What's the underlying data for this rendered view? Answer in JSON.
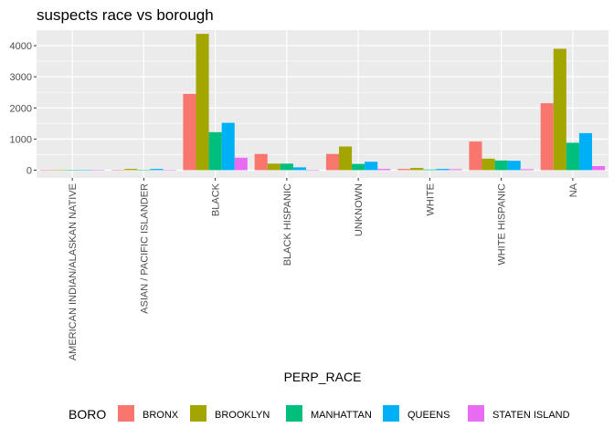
{
  "chart_data": {
    "type": "bar",
    "title": "suspects race vs borough",
    "xlabel": "PERP_RACE",
    "ylabel": "",
    "ylim": [
      -250,
      4500
    ],
    "yticks": [
      0,
      1000,
      2000,
      3000,
      4000
    ],
    "grid": true,
    "legend_placement": "bottom",
    "legend_title": "BORO",
    "categories": [
      "AMERICAN INDIAN/ALASKAN NATIVE",
      "ASIAN / PACIFIC ISLANDER",
      "BLACK",
      "BLACK HISPANIC",
      "UNKNOWN",
      "WHITE",
      "WHITE HISPANIC",
      "NA"
    ],
    "series": [
      {
        "name": "BRONX",
        "color": "#F8766D",
        "values": [
          5,
          5,
          2450,
          520,
          520,
          40,
          920,
          2150
        ]
      },
      {
        "name": "BROOKLYN",
        "color": "#A3A500",
        "values": [
          10,
          40,
          4380,
          210,
          760,
          70,
          370,
          3900
        ]
      },
      {
        "name": "MANHATTAN",
        "color": "#00BF7D",
        "values": [
          3,
          10,
          1220,
          210,
          200,
          20,
          310,
          880
        ]
      },
      {
        "name": "QUEENS",
        "color": "#00B0F6",
        "values": [
          10,
          40,
          1520,
          90,
          270,
          40,
          300,
          1190
        ]
      },
      {
        "name": "STATEN ISLAND",
        "color": "#E76BF3",
        "values": [
          2,
          5,
          400,
          10,
          40,
          30,
          30,
          130
        ]
      }
    ]
  }
}
